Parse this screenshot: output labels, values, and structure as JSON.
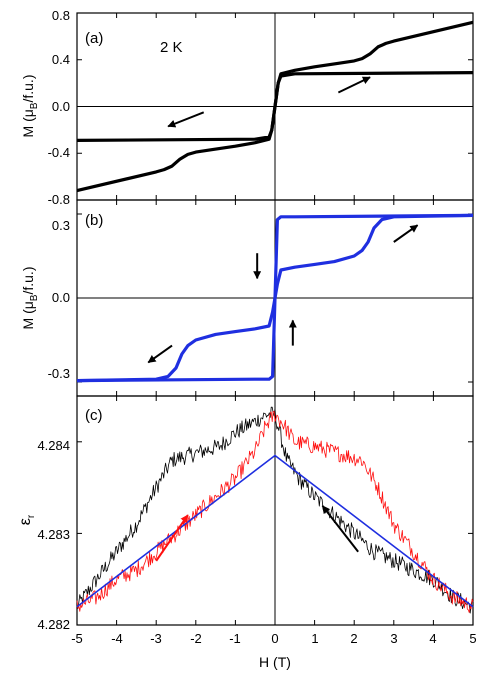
{
  "chart_data": [
    {
      "panel": "(a)",
      "type": "line",
      "annotation": "2 K",
      "xlim": [
        -5,
        5
      ],
      "ylim": [
        -0.8,
        0.8
      ],
      "yticks": [
        "-0.8",
        "-0.4",
        "0.0",
        "0.4",
        "0.8"
      ],
      "ylabel_parts": [
        "M (μ",
        "B",
        "/f.u.)"
      ],
      "color": "#000000",
      "series": [
        {
          "x": [
            -5,
            -3.0,
            -2.8,
            -2.6,
            -2.4,
            -2.2,
            -2.0,
            -1.6,
            -1.0,
            -0.5,
            -0.15,
            -0.08,
            0,
            0.08,
            0.15,
            0.5,
            5
          ],
          "y": [
            -0.72,
            -0.56,
            -0.54,
            -0.51,
            -0.45,
            -0.41,
            -0.39,
            -0.37,
            -0.34,
            -0.31,
            -0.28,
            -0.2,
            0.0,
            0.2,
            0.26,
            0.28,
            0.29
          ]
        },
        {
          "x": [
            -5,
            -0.5,
            -0.15,
            -0.08,
            0,
            0.08,
            0.15,
            0.5,
            1.0,
            1.6,
            2.0,
            2.2,
            2.4,
            2.6,
            2.8,
            3.0,
            5
          ],
          "y": [
            -0.29,
            -0.28,
            -0.26,
            -0.2,
            0.0,
            0.2,
            0.28,
            0.31,
            0.34,
            0.37,
            0.39,
            0.41,
            0.45,
            0.51,
            0.54,
            0.56,
            0.72
          ]
        }
      ],
      "arrows": [
        {
          "from": [
            1.6,
            0.12
          ],
          "to": [
            2.4,
            0.25
          ]
        },
        {
          "from": [
            -1.8,
            -0.05
          ],
          "to": [
            -2.7,
            -0.17
          ]
        }
      ]
    },
    {
      "panel": "(b)",
      "type": "line",
      "xlim": [
        -5,
        5
      ],
      "ylim": [
        -0.35,
        0.35
      ],
      "yticks": [
        "-0.3",
        "0.0",
        "0.3"
      ],
      "ylabel_parts": [
        "M (μ",
        "B",
        "/f.u.)"
      ],
      "color": "#1f2fe0",
      "series": [
        {
          "x": [
            -5,
            -3.0,
            -2.7,
            -2.5,
            -2.35,
            -2.2,
            -2.0,
            -1.5,
            -1.0,
            -0.5,
            -0.15,
            -0.06,
            0,
            0.06,
            0.15,
            0.5,
            5
          ],
          "y": [
            -0.295,
            -0.29,
            -0.28,
            -0.25,
            -0.2,
            -0.17,
            -0.15,
            -0.13,
            -0.12,
            -0.11,
            -0.1,
            -0.05,
            0.0,
            0.28,
            0.29,
            0.29,
            0.295
          ]
        },
        {
          "x": [
            -5,
            -0.5,
            -0.15,
            -0.06,
            0,
            0.06,
            0.15,
            0.5,
            1.0,
            1.5,
            2.0,
            2.2,
            2.35,
            2.5,
            2.7,
            3.0,
            5
          ],
          "y": [
            -0.295,
            -0.29,
            -0.29,
            -0.28,
            0.0,
            0.05,
            0.1,
            0.11,
            0.12,
            0.13,
            0.15,
            0.17,
            0.2,
            0.25,
            0.28,
            0.29,
            0.295
          ]
        }
      ],
      "arrows": [
        {
          "from": [
            3.0,
            0.2
          ],
          "to": [
            3.6,
            0.26
          ]
        },
        {
          "from": [
            -2.6,
            -0.17
          ],
          "to": [
            -3.2,
            -0.23
          ]
        },
        {
          "from": [
            -0.45,
            0.16
          ],
          "to": [
            -0.45,
            0.07
          ]
        },
        {
          "from": [
            0.45,
            -0.17
          ],
          "to": [
            0.45,
            -0.08
          ]
        }
      ]
    },
    {
      "panel": "(c)",
      "type": "line",
      "xlim": [
        -5,
        5
      ],
      "ylim": [
        4.282,
        4.2845
      ],
      "yticks": [
        "4.282",
        "4.283",
        "4.284"
      ],
      "xticks": [
        "-5",
        "-4",
        "-3",
        "-2",
        "-1",
        "0",
        "1",
        "2",
        "3",
        "4",
        "5"
      ],
      "ylabel_parts": [
        "ε",
        "r"
      ],
      "xlabel": "H (T)",
      "series": [
        {
          "color": "#000000",
          "noise": 9e-05,
          "x": [
            -5,
            -4.5,
            -4,
            -3.5,
            -3,
            -2.6,
            -2.2,
            -1.8,
            -1.4,
            -1.0,
            -0.6,
            -0.2,
            0,
            0.3,
            0.6,
            1.0,
            1.5,
            2.0,
            2.5,
            3.0,
            3.5,
            4.0,
            4.5,
            5
          ],
          "y": [
            4.2822,
            4.2825,
            4.2828,
            4.2831,
            4.2835,
            4.2838,
            4.28385,
            4.2839,
            4.28395,
            4.2841,
            4.2842,
            4.2843,
            4.2843,
            4.2838,
            4.2836,
            4.2834,
            4.2832,
            4.283,
            4.2828,
            4.2827,
            4.2826,
            4.2825,
            4.2823,
            4.2822
          ]
        },
        {
          "color": "#ff1010",
          "noise": 9e-05,
          "x": [
            -5,
            -4.5,
            -4,
            -3.5,
            -3,
            -2.5,
            -2.0,
            -1.5,
            -1.0,
            -0.5,
            -0.2,
            0,
            0.2,
            0.5,
            1.0,
            1.4,
            1.8,
            2.2,
            2.6,
            3.0,
            3.5,
            4,
            4.5,
            5
          ],
          "y": [
            4.2822,
            4.2823,
            4.2825,
            4.2826,
            4.2828,
            4.283,
            4.2832,
            4.2834,
            4.2836,
            4.2839,
            4.2842,
            4.2843,
            4.2842,
            4.284,
            4.28395,
            4.2839,
            4.28385,
            4.2838,
            4.2835,
            4.2831,
            4.2828,
            4.2825,
            4.2823,
            4.2822
          ]
        },
        {
          "color": "#1f2fe0",
          "noise": 0,
          "x": [
            -5,
            0,
            5
          ],
          "y": [
            4.2822,
            4.28385,
            4.2822
          ]
        }
      ],
      "arrows": [
        {
          "from": [
            -3.0,
            4.2827
          ],
          "to": [
            -2.2,
            4.2832
          ],
          "color": "#ff1010"
        },
        {
          "from": [
            2.1,
            4.2828
          ],
          "to": [
            1.2,
            4.2833
          ],
          "color": "#000000"
        }
      ]
    }
  ]
}
